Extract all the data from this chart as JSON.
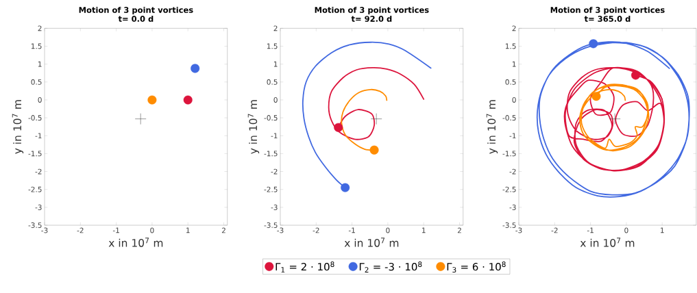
{
  "chart_data": [
    {
      "type": "scatter",
      "title": "Motion of 3 point vortices",
      "subtitle": "t= 0.0 d",
      "xlabel": "x in 10$^{7}$ m",
      "ylabel": "y in 10$^{7}$ m",
      "xlim": [
        -3,
        2.1
      ],
      "ylim": [
        -3.5,
        2
      ],
      "xticks": [
        -3,
        -2,
        -1,
        0,
        1,
        2
      ],
      "yticks": [
        -3.5,
        -3,
        -2.5,
        -2,
        -1.5,
        -1,
        -0.5,
        0,
        0.5,
        1,
        1.5,
        2
      ],
      "series": [
        {
          "type": "scatter",
          "marker": "circle",
          "color": "#dc143c",
          "x": [
            1.0
          ],
          "values": [
            0.0
          ]
        },
        {
          "type": "scatter",
          "marker": "circle",
          "color": "#4169e1",
          "x": [
            1.2
          ],
          "values": [
            0.88
          ]
        },
        {
          "type": "scatter",
          "marker": "circle",
          "color": "#ff8c00",
          "x": [
            0.0
          ],
          "values": [
            0.0
          ]
        },
        {
          "type": "scatter",
          "marker": "cross",
          "color": "#333333",
          "x": [
            -0.32
          ],
          "values": [
            -0.53
          ]
        }
      ]
    },
    {
      "type": "scatter",
      "title": "Motion of 3 point vortices",
      "subtitle": "t= 92.0 d",
      "xlabel": "x in 10$^{7}$ m",
      "ylabel": "y in 10$^{7}$ m",
      "xlim": [
        -3,
        2.1
      ],
      "ylim": [
        -3.5,
        2
      ],
      "xticks": [
        -3,
        -2,
        -1,
        0,
        1,
        2
      ],
      "yticks": [
        -3.5,
        -3,
        -2.5,
        -2,
        -1.5,
        -1,
        -0.5,
        0,
        0.5,
        1,
        1.5,
        2
      ],
      "legend": "bottom",
      "series": [
        {
          "type": "line",
          "color": "#4169e1",
          "x": [
            1.2,
            0.48,
            0.03,
            -0.48,
            -1.06,
            -1.57,
            -2.02,
            -2.28,
            -2.37,
            -2.34,
            -2.21,
            -2.02,
            -1.76,
            -1.44,
            -1.19
          ],
          "values": [
            0.89,
            1.38,
            1.56,
            1.61,
            1.54,
            1.32,
            0.94,
            0.5,
            -0.01,
            -0.52,
            -1.03,
            -1.47,
            -1.85,
            -2.23,
            -2.45
          ]
        },
        {
          "type": "line",
          "color": "#dc143c",
          "x": [
            1.0,
            0.74,
            0.35,
            -0.03,
            -0.42,
            -0.87,
            -1.25,
            -1.57,
            -1.65,
            -1.57,
            -1.35,
            -0.93,
            -0.54,
            -0.38,
            -0.45,
            -0.83,
            -1.19,
            -1.38
          ],
          "values": [
            0.02,
            0.43,
            0.72,
            0.86,
            0.9,
            0.84,
            0.62,
            0.24,
            -0.2,
            -0.58,
            -0.9,
            -1.1,
            -1.03,
            -0.71,
            -0.39,
            -0.27,
            -0.46,
            -0.77
          ]
        },
        {
          "type": "line",
          "color": "#ff8c00",
          "x": [
            -0.03,
            -0.06,
            -0.22,
            -0.48,
            -0.8,
            -1.06,
            -1.25,
            -1.29,
            -1.19,
            -0.93,
            -0.64,
            -0.38
          ],
          "values": [
            -0.01,
            0.11,
            0.24,
            0.29,
            0.21,
            -0.01,
            -0.33,
            -0.65,
            -0.97,
            -1.22,
            -1.38,
            -1.4
          ]
        },
        {
          "type": "scatter",
          "marker": "circle",
          "name": "Γ$_{1}$ = 2 · 10$^{8}$",
          "color": "#dc143c",
          "x": [
            -1.38
          ],
          "values": [
            -0.77
          ]
        },
        {
          "type": "scatter",
          "marker": "circle",
          "name": "Γ$_{2}$ = -3 · 10$^{8}$",
          "color": "#4169e1",
          "x": [
            -1.19
          ],
          "values": [
            -2.45
          ]
        },
        {
          "type": "scatter",
          "marker": "circle",
          "name": "Γ$_{3}$ = 6 · 10$^{8}$",
          "color": "#ff8c00",
          "x": [
            -0.38
          ],
          "values": [
            -1.4
          ]
        },
        {
          "type": "scatter",
          "marker": "cross",
          "color": "#333333",
          "x": [
            -0.32
          ],
          "values": [
            -0.53
          ]
        }
      ]
    },
    {
      "type": "scatter",
      "title": "Motion of 3 point vortices",
      "subtitle": "t= 365.0 d",
      "xlabel": "x in 10$^{7}$ m",
      "ylabel": "y in 10$^{7}$ m",
      "xlim": [
        -3,
        1.95
      ],
      "ylim": [
        -3.5,
        2
      ],
      "xticks": [
        -3,
        -2,
        -1,
        0,
        1
      ],
      "yticks": [
        -3.5,
        -3,
        -2.5,
        -2,
        -1.5,
        -1,
        -0.5,
        0,
        0.5,
        1,
        1.5,
        2
      ],
      "series": [
        {
          "type": "line",
          "color": "#4169e1",
          "x": [
            1.2,
            0.6,
            0,
            -0.5,
            -1.1,
            -1.6,
            -2.05,
            -2.35,
            -2.48,
            -2.45,
            -2.25,
            -1.9,
            -1.4,
            -0.8,
            -0.2,
            0.4,
            0.95,
            1.4,
            1.68,
            1.75,
            1.7,
            1.5,
            1.1,
            0.6,
            0.0,
            -0.55,
            -1.15,
            -1.7,
            -2.15,
            -2.4,
            -2.42,
            -2.3,
            -2.05,
            -1.6,
            -1.0,
            -0.4,
            0.25,
            0.85,
            1.35,
            1.65,
            1.75,
            1.72,
            1.45,
            1.0,
            0.4,
            -0.3,
            -0.92
          ],
          "values": [
            0.88,
            1.35,
            1.58,
            1.62,
            1.52,
            1.25,
            0.85,
            0.3,
            -0.3,
            -0.9,
            -1.5,
            -2.0,
            -2.45,
            -2.68,
            -2.7,
            -2.55,
            -2.2,
            -1.7,
            -1.1,
            -0.55,
            0.0,
            0.55,
            1.1,
            1.45,
            1.6,
            1.58,
            1.45,
            1.15,
            0.7,
            0.1,
            -0.5,
            -1.1,
            -1.65,
            -2.15,
            -2.55,
            -2.65,
            -2.6,
            -2.3,
            -1.85,
            -1.2,
            -0.55,
            0.1,
            0.7,
            1.2,
            1.52,
            1.6,
            1.57
          ]
        },
        {
          "type": "line",
          "color": "#dc143c",
          "x": [
            1.0,
            0.74,
            0.35,
            -0.03,
            -0.42,
            -0.87,
            -1.25,
            -1.57,
            -1.65,
            -1.57,
            -1.35,
            -0.93,
            -0.54,
            -0.38,
            -0.45,
            -0.83,
            -1.19,
            -1.38,
            -1.45,
            -1.2,
            -0.7,
            -0.1,
            0.5,
            0.9,
            1.05,
            0.95,
            0.6,
            0.1,
            -0.4,
            -0.7,
            -1.0,
            -0.85,
            -0.45,
            -0.35,
            -0.6,
            -1.05,
            -1.3,
            -1.65,
            -1.72,
            -1.5,
            -1.0,
            -0.35,
            0.35,
            0.85,
            1.05,
            0.95,
            0.6,
            0.3,
            -0.1,
            -0.3,
            -0.1,
            0.3,
            0.6,
            0.75,
            0.7,
            0.3,
            -0.3,
            -0.9,
            -1.45,
            -1.7,
            -1.6,
            -1.2,
            -0.7,
            -0.4,
            -0.6,
            -1.1,
            -1.4,
            -1.4,
            -1.05,
            -0.4,
            0.3,
            0.85,
            1.05,
            1.0,
            0.7,
            0.26
          ],
          "values": [
            0.02,
            0.43,
            0.72,
            0.86,
            0.9,
            0.84,
            0.62,
            0.24,
            -0.2,
            -0.58,
            -0.9,
            -1.1,
            -1.03,
            -0.71,
            -0.39,
            -0.27,
            -0.46,
            -0.77,
            -1.2,
            -1.65,
            -1.93,
            -1.95,
            -1.7,
            -1.25,
            -0.6,
            0.0,
            0.55,
            0.85,
            0.88,
            0.5,
            0.05,
            -0.4,
            -0.35,
            0.1,
            0.45,
            0.55,
            0.35,
            -0.1,
            -0.6,
            -1.3,
            -1.8,
            -1.98,
            -1.85,
            -1.35,
            -0.7,
            -0.1,
            -0.3,
            -0.05,
            -0.15,
            -0.55,
            -0.95,
            -1.0,
            -0.7,
            -0.1,
            0.4,
            0.8,
            0.9,
            0.75,
            0.3,
            -0.35,
            -1.0,
            -1.1,
            -1.15,
            -0.75,
            -0.3,
            -0.3,
            -0.65,
            -1.25,
            -1.75,
            -1.97,
            -1.85,
            -1.4,
            -0.7,
            0.0,
            0.5,
            0.69
          ]
        },
        {
          "type": "line",
          "color": "#ff8c00",
          "x": [
            -0.03,
            -0.06,
            -0.22,
            -0.48,
            -0.8,
            -1.06,
            -1.25,
            -1.29,
            -1.19,
            -0.93,
            -0.64,
            -0.38,
            0.0,
            0.35,
            0.55,
            0.6,
            0.4,
            0.0,
            -0.5,
            -0.95,
            -1.2,
            -1.25,
            -1.05,
            -0.6,
            -0.48,
            -0.3,
            0.1,
            0.3,
            0.25,
            0.45,
            0.6,
            0.5,
            0.2,
            -0.3,
            -0.8,
            -1.15,
            -1.3,
            -1.2,
            -0.85,
            -0.4,
            0.1,
            0.45,
            0.62,
            0.55,
            0.3,
            -0.2,
            -0.6,
            -0.84
          ],
          "values": [
            -0.01,
            0.11,
            0.24,
            0.29,
            0.21,
            -0.01,
            -0.33,
            -0.65,
            -0.97,
            -1.22,
            -1.38,
            -1.4,
            -1.3,
            -1.05,
            -0.6,
            -0.15,
            0.2,
            0.4,
            0.42,
            0.2,
            -0.2,
            -0.65,
            -1.05,
            -1.35,
            -1.1,
            -1.3,
            -1.2,
            -1.0,
            -0.75,
            -0.75,
            -0.4,
            0.0,
            0.3,
            0.4,
            0.3,
            -0.05,
            -0.5,
            -0.95,
            -1.25,
            -1.42,
            -1.3,
            -0.95,
            -0.5,
            -0.05,
            0.3,
            0.42,
            0.35,
            0.1
          ]
        },
        {
          "type": "scatter",
          "marker": "circle",
          "color": "#dc143c",
          "x": [
            0.26
          ],
          "values": [
            0.69
          ]
        },
        {
          "type": "scatter",
          "marker": "circle",
          "color": "#4169e1",
          "x": [
            -0.92
          ],
          "values": [
            1.57
          ]
        },
        {
          "type": "scatter",
          "marker": "circle",
          "color": "#ff8c00",
          "x": [
            -0.84
          ],
          "values": [
            0.1
          ]
        },
        {
          "type": "scatter",
          "marker": "cross",
          "color": "#333333",
          "x": [
            -0.32
          ],
          "values": [
            -0.53
          ]
        }
      ]
    }
  ]
}
